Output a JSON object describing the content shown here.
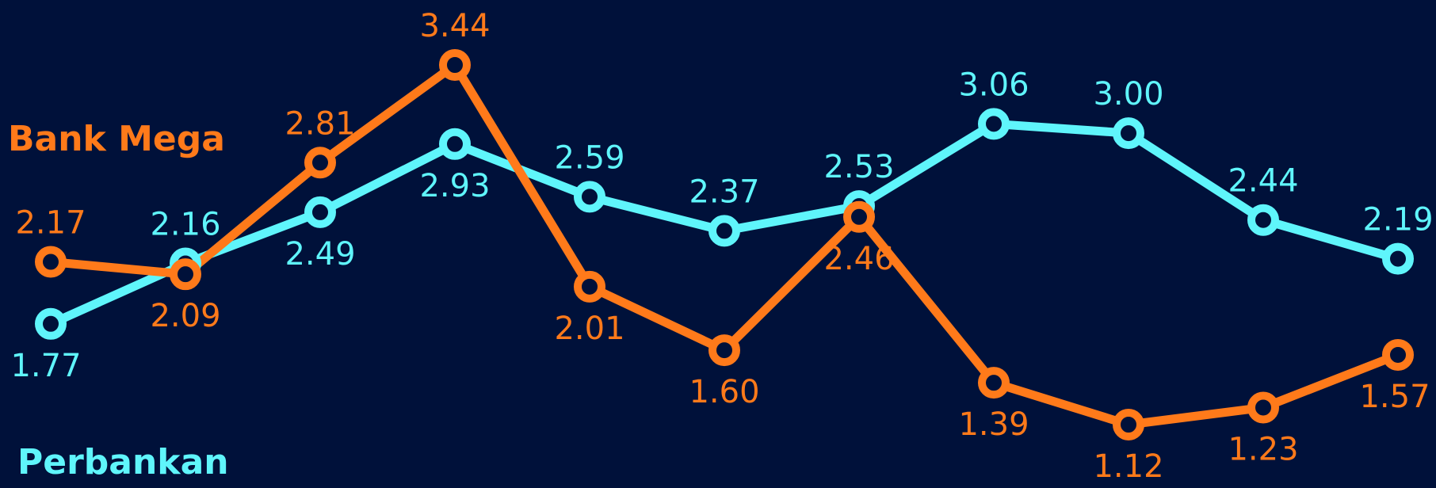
{
  "chart_data": {
    "type": "line",
    "title": "",
    "xlabel": "",
    "ylabel": "",
    "categories": [
      "",
      "",
      "",
      "",
      "",
      "",
      "",
      "",
      "",
      "",
      ""
    ],
    "ylim": [
      1.0,
      3.5
    ],
    "grid": false,
    "series": [
      {
        "name": "Bank Mega",
        "color": "#ff7a1a",
        "values": [
          2.17,
          2.09,
          2.81,
          3.44,
          2.01,
          1.6,
          2.46,
          1.39,
          1.12,
          1.23,
          1.57
        ],
        "labels": [
          "2.17",
          "2.09",
          "2.81",
          "3.44",
          "2.01",
          "1.60",
          "2.46",
          "1.39",
          "1.12",
          "1.23",
          "1.57"
        ]
      },
      {
        "name": "Perbankan",
        "color": "#5ff5fb",
        "values": [
          1.77,
          2.16,
          2.49,
          2.93,
          2.59,
          2.37,
          2.53,
          3.06,
          3.0,
          2.44,
          2.19
        ],
        "labels": [
          "1.77",
          "2.16",
          "2.49",
          "2.93",
          "2.59",
          "2.37",
          "2.53",
          "3.06",
          "3.00",
          "2.44",
          "2.19"
        ]
      }
    ]
  },
  "legend": {
    "bank_mega": "Bank Mega",
    "perbankan": "Perbankan"
  },
  "colors": {
    "background": "#00113a",
    "bank_mega": "#ff7a1a",
    "perbankan": "#5ff5fb"
  }
}
